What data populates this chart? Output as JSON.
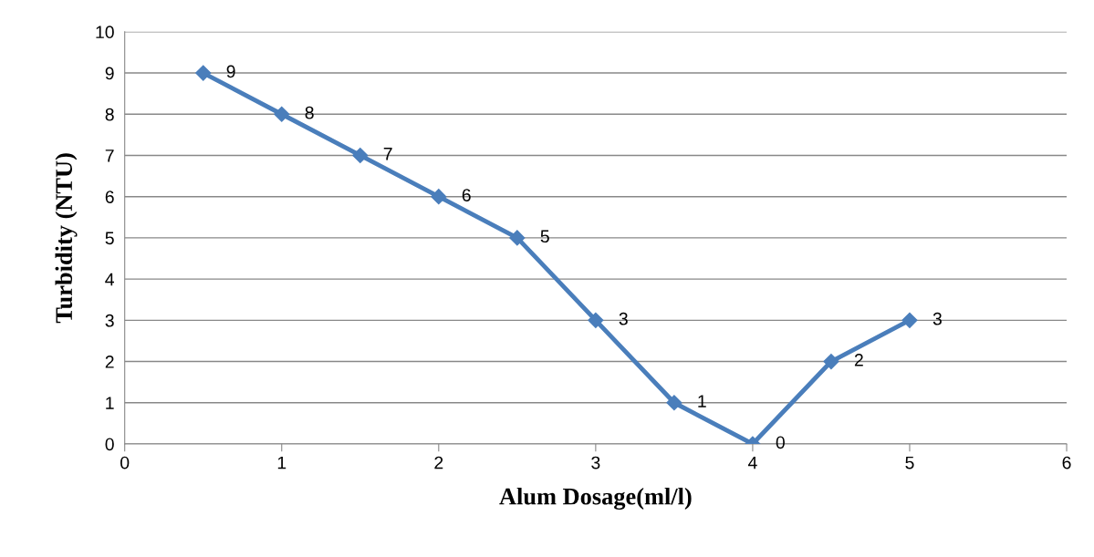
{
  "chart_data": {
    "type": "line",
    "xlabel": "Alum Dosage(ml/l)",
    "ylabel": "Turbidity (NTU)",
    "x": [
      0.5,
      1,
      1.5,
      2,
      2.5,
      3,
      3.5,
      4,
      4.5,
      5
    ],
    "series": [
      {
        "color": "#4a7ebb",
        "values": [
          9,
          8,
          7,
          6,
          5,
          3,
          1,
          0,
          2,
          3
        ]
      }
    ],
    "xlim": [
      0,
      6
    ],
    "xticks": [
      0,
      1,
      2,
      3,
      4,
      5,
      6
    ],
    "ylim": [
      0,
      10
    ],
    "yticks": [
      0,
      1,
      2,
      3,
      4,
      5,
      6,
      7,
      8,
      9,
      10
    ],
    "grid": "y",
    "marker": "diamond",
    "line_style": "solid",
    "data_labels": true,
    "legend": false
  }
}
